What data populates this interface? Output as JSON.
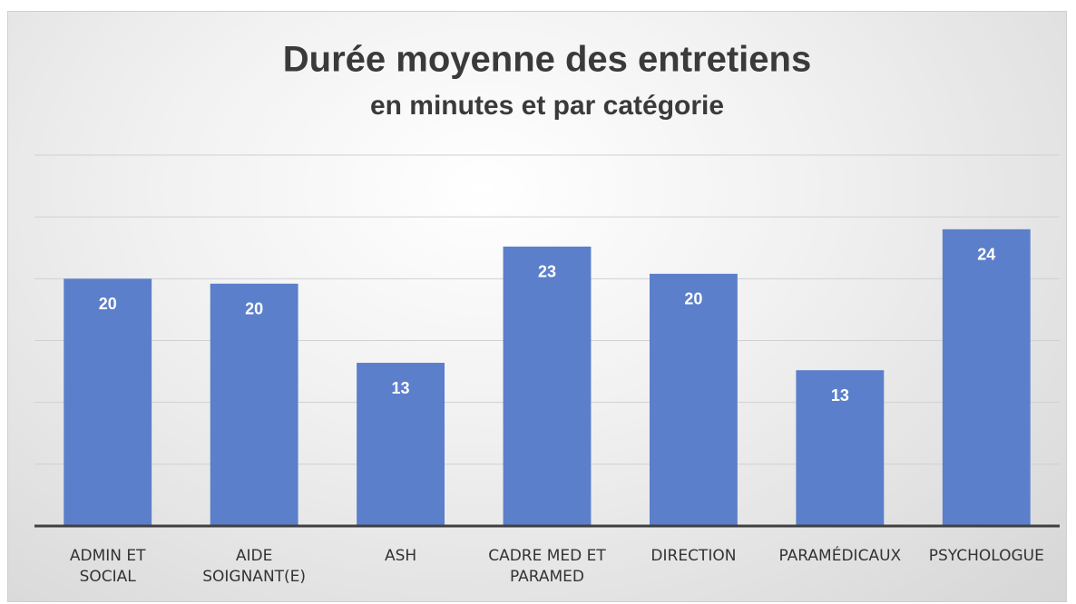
{
  "chart_data": {
    "type": "bar",
    "title": "Durée moyenne des entretiens",
    "subtitle": "en minutes et par catégorie",
    "categories": [
      "ADMIN ET SOCIAL",
      "AIDE SOIGNANT(E)",
      "ASH",
      "CADRE MED ET PARAMED",
      "DIRECTION",
      "PARAMÉDICAUX",
      "PSYCHOLOGUE"
    ],
    "values": [
      20,
      19.6,
      13.2,
      22.6,
      20.4,
      12.6,
      24
    ],
    "value_labels": [
      "20",
      "20",
      "13",
      "23",
      "20",
      "13",
      "24"
    ],
    "color": "#5b7fca",
    "ylim": [
      0,
      30
    ],
    "yticks": [
      0,
      5,
      10,
      15,
      20,
      25,
      30
    ],
    "grid": true
  }
}
